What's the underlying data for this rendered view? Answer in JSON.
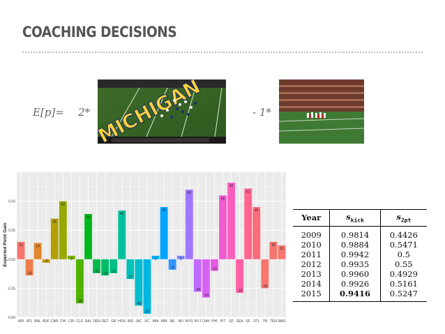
{
  "slide": {
    "title": "COACHING DECISIONS"
  },
  "formula": {
    "lhs": "E[p]=",
    "coef_kick": "2*",
    "coef_two": "- 1*"
  },
  "images": {
    "left_photo": "football field photo with end zone lettering",
    "right_photo": "football kick photo in stadium",
    "end_zone_text": "MICHIGAN"
  },
  "table": {
    "headers": {
      "year": "Year",
      "s_kick_base": "s",
      "s_kick_sub": "kick",
      "s_2pt_base": "s",
      "s_2pt_sub": "2pt"
    },
    "rows": [
      {
        "year": "2009",
        "kick": "0.9814",
        "two": "0.4426"
      },
      {
        "year": "2010",
        "kick": "0.9884",
        "two": "0.5471"
      },
      {
        "year": "2011",
        "kick": "0.9942",
        "two": "0.5"
      },
      {
        "year": "2012",
        "kick": "0.9935",
        "two": "0.55"
      },
      {
        "year": "2013",
        "kick": "0.9960",
        "two": "0.4929"
      },
      {
        "year": "2014",
        "kick": "0.9926",
        "two": "0.5161"
      },
      {
        "year": "2015",
        "kick": "0.9416",
        "two": "0.5247"
      }
    ]
  },
  "chart_data": {
    "type": "bar",
    "ylabel": "Expected Point Gain",
    "ylim": [
      -0.5,
      0.75
    ],
    "yticks": [
      "-0.50",
      "-0.25",
      "0.00",
      "0.25",
      "0.50"
    ],
    "ytick_values": [
      -0.5,
      -0.25,
      0,
      0.25,
      0.5
    ],
    "grid": true,
    "categories": [
      "ARI",
      "ATL",
      "BAL",
      "BUF",
      "CAR",
      "CHI",
      "CIN",
      "CLE",
      "DAL",
      "DEN",
      "DET",
      "GB",
      "HOU",
      "IND",
      "JAC",
      "KC",
      "MIA",
      "MIN",
      "NE",
      "NO",
      "NYG",
      "NYJ",
      "OAK",
      "PHI",
      "PIT",
      "SD",
      "SEA",
      "SF",
      "STL",
      "TB",
      "TEN",
      "WAS"
    ],
    "values": [
      0.15,
      -0.14,
      0.14,
      -0.03,
      0.35,
      0.5,
      0.03,
      -0.38,
      0.39,
      -0.12,
      -0.14,
      -0.12,
      0.42,
      -0.17,
      -0.4,
      -0.47,
      0.03,
      0.45,
      -0.09,
      0.03,
      0.6,
      -0.28,
      -0.33,
      -0.1,
      0.55,
      0.66,
      -0.29,
      0.61,
      0.45,
      -0.25,
      0.15,
      0.12
    ],
    "labels": [
      "15",
      "-14",
      "14",
      "-3",
      "35",
      "50",
      "3",
      "-38",
      "39",
      "-12",
      "-14",
      "-12",
      "42",
      "-17",
      "-40",
      "-47",
      "3",
      "45",
      "-9",
      "3",
      "60",
      "-28",
      "-33",
      "-10",
      "55",
      "66",
      "-29",
      "61",
      "45",
      "-25",
      "15",
      "12"
    ],
    "colors": [
      "#f8766d",
      "#f07e4a",
      "#e0872b",
      "#cc9600",
      "#b3a000",
      "#98a800",
      "#7aae00",
      "#4fb300",
      "#00b81c",
      "#00ba4a",
      "#00bc6a",
      "#00be86",
      "#00c0a0",
      "#00c0b8",
      "#00bdcf",
      "#00b7e3",
      "#00aef4",
      "#00a3ff",
      "#3294ff",
      "#7c85ff",
      "#a277ff",
      "#c06bff",
      "#d761f5",
      "#e858e6",
      "#f25ad3",
      "#fa5ebd",
      "#ff61a6",
      "#ff658e",
      "#fd6b78",
      "#f8766d",
      "#f5756f",
      "#f8766d"
    ]
  }
}
